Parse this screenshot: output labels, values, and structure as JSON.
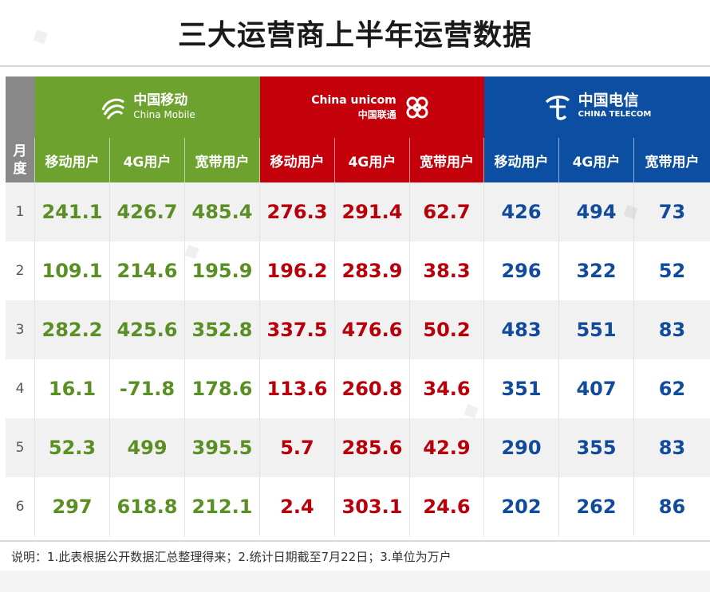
{
  "title": "三大运营商上半年运营数据",
  "month_header": [
    "月",
    "度"
  ],
  "operators": [
    {
      "key": "cm",
      "logo_cn": "中国移动",
      "logo_en": "China Mobile",
      "color": "#6ea22f"
    },
    {
      "key": "cu",
      "logo_cn": "中国联通",
      "logo_en": "China unicom",
      "color": "#c4000b"
    },
    {
      "key": "ct",
      "logo_cn": "中国电信",
      "logo_en": "CHINA TELECOM",
      "color": "#0b4ea2"
    }
  ],
  "columns": [
    "移动用户",
    "4G用户",
    "宽带用户"
  ],
  "rows": [
    {
      "month": "1",
      "cm": [
        "241.1",
        "426.7",
        "485.4"
      ],
      "cu": [
        "276.3",
        "291.4",
        "62.7"
      ],
      "ct": [
        "426",
        "494",
        "73"
      ]
    },
    {
      "month": "2",
      "cm": [
        "109.1",
        "214.6",
        "195.9"
      ],
      "cu": [
        "196.2",
        "283.9",
        "38.3"
      ],
      "ct": [
        "296",
        "322",
        "52"
      ]
    },
    {
      "month": "3",
      "cm": [
        "282.2",
        "425.6",
        "352.8"
      ],
      "cu": [
        "337.5",
        "476.6",
        "50.2"
      ],
      "ct": [
        "483",
        "551",
        "83"
      ]
    },
    {
      "month": "4",
      "cm": [
        "16.1",
        "-71.8",
        "178.6"
      ],
      "cu": [
        "113.6",
        "260.8",
        "34.6"
      ],
      "ct": [
        "351",
        "407",
        "62"
      ]
    },
    {
      "month": "5",
      "cm": [
        "52.3",
        "499",
        "395.5"
      ],
      "cu": [
        "5.7",
        "285.6",
        "42.9"
      ],
      "ct": [
        "290",
        "355",
        "83"
      ]
    },
    {
      "month": "6",
      "cm": [
        "297",
        "618.8",
        "212.1"
      ],
      "cu": [
        "2.4",
        "303.1",
        "24.6"
      ],
      "ct": [
        "202",
        "262",
        "86"
      ]
    }
  ],
  "note": "说明：1.此表根据公开数据汇总整理得来；2.统计日期截至7月22日；3.单位为万户"
}
